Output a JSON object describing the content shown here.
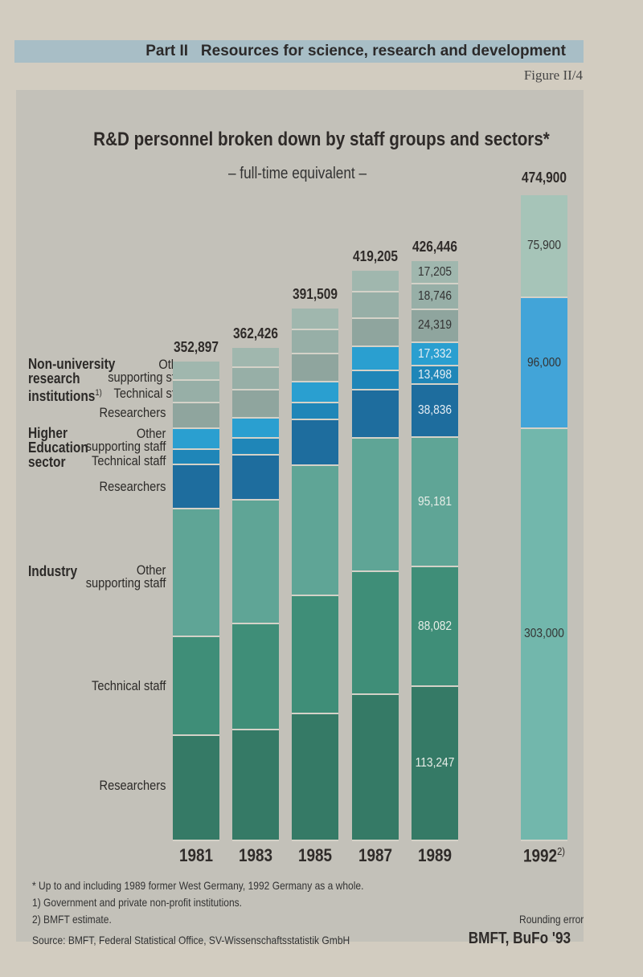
{
  "header": {
    "part": "Part II",
    "section": "Resources for science, research and development",
    "figure": "Figure II/4"
  },
  "chart_data": {
    "type": "bar",
    "stacked": true,
    "title": "R&D personnel broken down by staff groups and sectors*",
    "subtitle": "– full-time equivalent –",
    "categories": [
      "1981",
      "1983",
      "1985",
      "1987",
      "1989",
      "1992"
    ],
    "category_notes": [
      "",
      "",
      "",
      "",
      "",
      "2)"
    ],
    "totals": [
      "352,897",
      "362,426",
      "391,509",
      "419,205",
      "426,446",
      "474,900"
    ],
    "sectors": [
      {
        "name": "Industry",
        "groups": [
          "Researchers",
          "Technical staff",
          "Other supporting staff"
        ]
      },
      {
        "name": "Higher Education sector",
        "groups": [
          "Researchers",
          "Technical staff",
          "Other supporting staff"
        ]
      },
      {
        "name": "Non-university research institutions",
        "note": "1)",
        "groups": [
          "Researchers",
          "Technical staff",
          "Other supporting staff"
        ]
      }
    ],
    "series": [
      {
        "name": "Industry – Researchers",
        "values": [
          77200,
          81500,
          93300,
          107400,
          113247,
          null
        ],
        "labels": [
          "",
          "",
          "",
          "",
          "113,247",
          ""
        ]
      },
      {
        "name": "Industry – Technical staff",
        "values": [
          73000,
          77900,
          86900,
          90400,
          88082,
          null
        ],
        "labels": [
          "",
          "",
          "",
          "",
          "88,082",
          ""
        ]
      },
      {
        "name": "Industry – Other supporting staff",
        "values": [
          93700,
          90900,
          95700,
          98000,
          95181,
          null
        ],
        "labels": [
          "",
          "",
          "",
          "",
          "95,181",
          ""
        ]
      },
      {
        "name": "Higher Education – Researchers",
        "values": [
          32400,
          33100,
          33500,
          35800,
          38836,
          null
        ],
        "labels": [
          "",
          "",
          "",
          "",
          "38,836",
          ""
        ]
      },
      {
        "name": "Higher Education – Technical staff",
        "values": [
          11200,
          12400,
          12300,
          14100,
          13498,
          null
        ],
        "labels": [
          "",
          "",
          "",
          "",
          "13,498",
          ""
        ]
      },
      {
        "name": "Higher Education – Other supporting staff",
        "values": [
          15300,
          14800,
          15800,
          17600,
          17332,
          null
        ],
        "labels": [
          "",
          "",
          "",
          "",
          "17,332",
          ""
        ]
      },
      {
        "name": "Non-university – Researchers",
        "values": [
          18900,
          20700,
          20500,
          20500,
          24319,
          null
        ],
        "labels": [
          "",
          "",
          "",
          "",
          "24,319",
          ""
        ]
      },
      {
        "name": "Non-university – Technical staff",
        "values": [
          16500,
          16500,
          17600,
          19400,
          18746,
          null
        ],
        "labels": [
          "",
          "",
          "",
          "",
          "18,746",
          ""
        ]
      },
      {
        "name": "Non-university – Other supporting staff",
        "values": [
          14700,
          14800,
          15800,
          15900,
          17205,
          null
        ],
        "labels": [
          "",
          "",
          "",
          "",
          "17,205",
          ""
        ]
      },
      {
        "name": "Industry (1992)",
        "values": [
          null,
          null,
          null,
          null,
          null,
          303000
        ],
        "labels": [
          "",
          "",
          "",
          "",
          "",
          "303,000"
        ]
      },
      {
        "name": "Higher Education (1992)",
        "values": [
          null,
          null,
          null,
          null,
          null,
          96000
        ],
        "labels": [
          "",
          "",
          "",
          "",
          "",
          "96,000"
        ]
      },
      {
        "name": "Non-university (1992)",
        "values": [
          null,
          null,
          null,
          null,
          null,
          75900
        ],
        "labels": [
          "",
          "",
          "",
          "",
          "",
          "75,900"
        ]
      }
    ],
    "colors": [
      "#357a66",
      "#3f8e78",
      "#5fa596",
      "#1e6d9e",
      "#1f86b8",
      "#2a9fd0",
      "#8fa59e",
      "#97afa7",
      "#a0b7ae",
      "#72b7ac",
      "#42a4d8",
      "#a6c4b8"
    ],
    "label_colors": [
      "#e8eee8",
      "#e8eee8",
      "#e8eee8",
      "#e6eef4",
      "#e6eef4",
      "#e6eef4",
      "#333333",
      "#333333",
      "#333333",
      "#333333",
      "#333333",
      "#333333"
    ]
  },
  "legend": {
    "non_university": {
      "sector": "Non-university research institutions",
      "l1": "Non-university",
      "l2": "research",
      "l3": "institutions",
      "note": "1)",
      "other": "Other supporting staff",
      "other1": "Other",
      "other2": "supporting staff",
      "technical": "Technical staff",
      "researchers": "Researchers"
    },
    "higher": {
      "l1": "Higher",
      "l2": "Education",
      "l3": "sector",
      "other1": "Other",
      "other2": "supporting staff",
      "technical": "Technical staff",
      "researchers": "Researchers"
    },
    "industry": {
      "l1": "Industry",
      "other1": "Other",
      "other2": "supporting staff",
      "technical": "Technical staff",
      "researchers": "Researchers"
    }
  },
  "footnotes": {
    "star": "*  Up to and including 1989 former West Germany, 1992 Germany as a whole.",
    "one": "1)  Government and private non-profit institutions.",
    "two": "2)  BMFT estimate.",
    "rounding": "Rounding error",
    "source": "Source: BMFT, Federal Statistical Office, SV-Wissenschaftsstatistik GmbH",
    "credit": "BMFT, BuFo '93"
  }
}
